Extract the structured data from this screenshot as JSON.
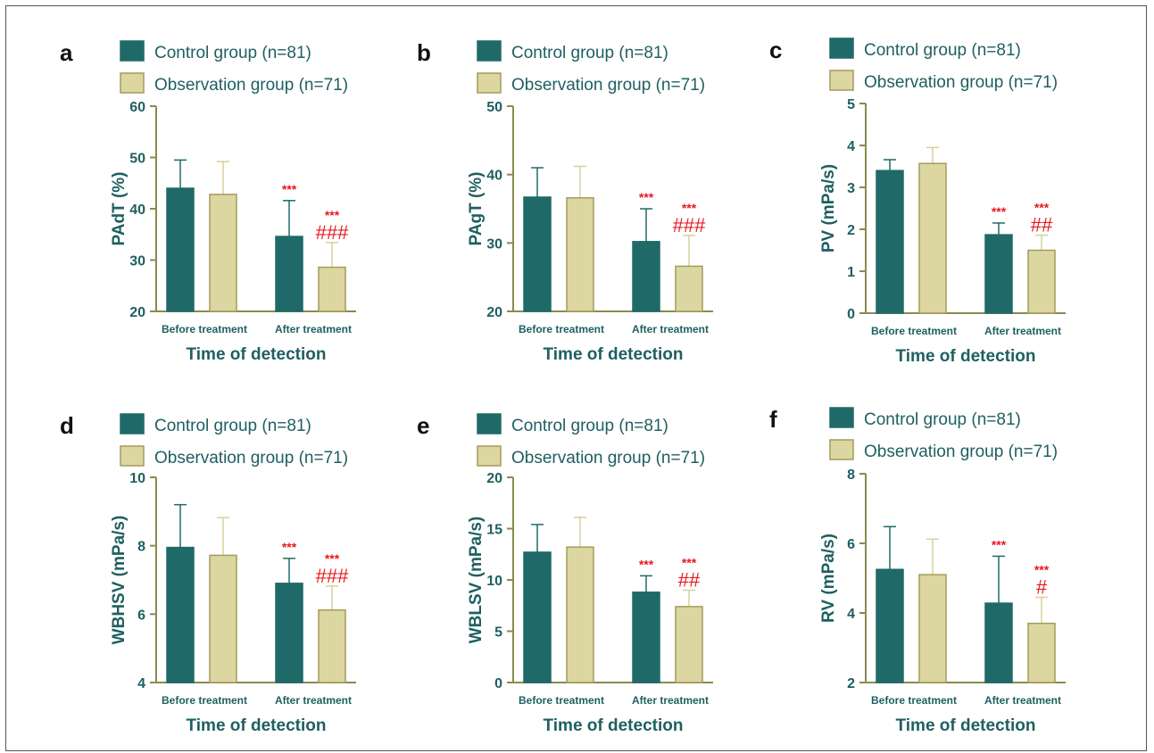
{
  "colors": {
    "control": "#1f6a68",
    "observation": "#dcd6a0",
    "observation_edge": "#a49c5c",
    "axis": "#8a8a50",
    "text": "#1f5f61",
    "sig": "#e8191f"
  },
  "chart_data": [
    {
      "panel": "a",
      "type": "bar",
      "categories": [
        "Before treatment",
        "After treatment"
      ],
      "series": [
        {
          "name": "Control group (n=81)",
          "values": [
            44,
            34.6
          ],
          "errors": [
            5.5,
            7
          ]
        },
        {
          "name": "Observation group (n=71)",
          "values": [
            42.8,
            28.6
          ],
          "errors": [
            6.4,
            4.8
          ]
        }
      ],
      "ylabel": "PAdT (%)",
      "xlabel": "Time of detection",
      "ylim": [
        20,
        60
      ],
      "yticks": [
        "20",
        "30",
        "40",
        "50",
        "60"
      ],
      "sig_control": [
        "",
        "***"
      ],
      "sig_obs_star": [
        "",
        "***"
      ],
      "sig_obs_hash": [
        "",
        "###"
      ],
      "legend": "top"
    },
    {
      "panel": "b",
      "type": "bar",
      "categories": [
        "Before treatment",
        "After treatment"
      ],
      "series": [
        {
          "name": "Control group (n=81)",
          "values": [
            36.7,
            30.2
          ],
          "errors": [
            4.3,
            4.8
          ]
        },
        {
          "name": "Observation group (n=71)",
          "values": [
            36.6,
            26.6
          ],
          "errors": [
            4.6,
            4.5
          ]
        }
      ],
      "ylabel": "PAgT (%)",
      "xlabel": "Time of detection",
      "ylim": [
        20,
        50
      ],
      "yticks": [
        "20",
        "30",
        "40",
        "50"
      ],
      "sig_control": [
        "",
        "***"
      ],
      "sig_obs_star": [
        "",
        "***"
      ],
      "sig_obs_hash": [
        "",
        "###"
      ],
      "legend": "top"
    },
    {
      "panel": "c",
      "type": "bar",
      "categories": [
        "Before treatment",
        "After treatment"
      ],
      "series": [
        {
          "name": "Control group (n=81)",
          "values": [
            3.4,
            1.87
          ],
          "errors": [
            0.26,
            0.28
          ]
        },
        {
          "name": "Observation group (n=71)",
          "values": [
            3.57,
            1.5
          ],
          "errors": [
            0.38,
            0.36
          ]
        }
      ],
      "ylabel": "PV (mPa/s)",
      "xlabel": "Time of detection",
      "ylim": [
        0,
        5
      ],
      "yticks": [
        "0",
        "1",
        "2",
        "3",
        "4",
        "5"
      ],
      "sig_control": [
        "",
        "***"
      ],
      "sig_obs_star": [
        "",
        "***"
      ],
      "sig_obs_hash": [
        "",
        "##"
      ],
      "legend": "top"
    },
    {
      "panel": "d",
      "type": "bar",
      "categories": [
        "Before treatment",
        "After treatment"
      ],
      "series": [
        {
          "name": "Control group (n=81)",
          "values": [
            7.95,
            6.9
          ],
          "errors": [
            1.25,
            0.73
          ]
        },
        {
          "name": "Observation group (n=71)",
          "values": [
            7.72,
            6.12
          ],
          "errors": [
            1.1,
            0.7
          ]
        }
      ],
      "ylabel": "WBHSV (mPa/s)",
      "xlabel": "Time of detection",
      "ylim": [
        4,
        10
      ],
      "yticks": [
        "4",
        "6",
        "8",
        "10"
      ],
      "sig_control": [
        "",
        "***"
      ],
      "sig_obs_star": [
        "",
        "***"
      ],
      "sig_obs_hash": [
        "",
        "###"
      ],
      "legend": "top"
    },
    {
      "panel": "e",
      "type": "bar",
      "categories": [
        "Before treatment",
        "After treatment"
      ],
      "series": [
        {
          "name": "Control group (n=81)",
          "values": [
            12.7,
            8.8
          ],
          "errors": [
            2.7,
            1.6
          ]
        },
        {
          "name": "Observation group (n=71)",
          "values": [
            13.2,
            7.4
          ],
          "errors": [
            2.9,
            1.6
          ]
        }
      ],
      "ylabel": "WBLSV (mPa/s)",
      "xlabel": "Time of detection",
      "ylim": [
        0,
        20
      ],
      "yticks": [
        "0",
        "5",
        "10",
        "15",
        "20"
      ],
      "sig_control": [
        "",
        "***"
      ],
      "sig_obs_star": [
        "",
        "***"
      ],
      "sig_obs_hash": [
        "",
        "##"
      ],
      "legend": "top"
    },
    {
      "panel": "f",
      "type": "bar",
      "categories": [
        "Before treatment",
        "After treatment"
      ],
      "series": [
        {
          "name": "Control group (n=81)",
          "values": [
            5.25,
            4.28
          ],
          "errors": [
            1.23,
            1.35
          ]
        },
        {
          "name": "Observation group (n=71)",
          "values": [
            5.1,
            3.7
          ],
          "errors": [
            1.02,
            0.75
          ]
        }
      ],
      "ylabel": "RV (mPa/s)",
      "xlabel": "Time of detection",
      "ylim": [
        2,
        8
      ],
      "yticks": [
        "2",
        "4",
        "6",
        "8"
      ],
      "sig_control": [
        "",
        "***"
      ],
      "sig_obs_star": [
        "",
        "***"
      ],
      "sig_obs_hash": [
        "",
        "#"
      ],
      "legend": "top"
    }
  ]
}
